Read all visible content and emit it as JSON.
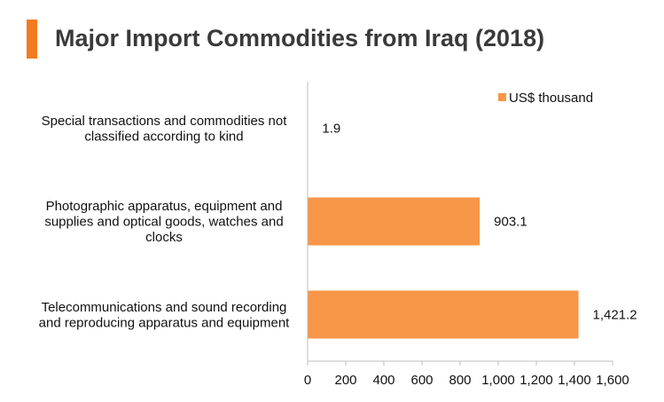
{
  "header": {
    "title": "Major Import Commodities from Iraq (2018)",
    "accent_color": "#f47b20"
  },
  "chart_data": {
    "type": "bar",
    "orientation": "horizontal",
    "title": "Major Import Commodities from Iraq (2018)",
    "categories": [
      [
        "Special transactions and commodities not",
        "classified according to kind"
      ],
      [
        "Photographic apparatus, equipment and",
        "supplies and optical goods, watches and",
        "clocks"
      ],
      [
        "Telecommunications and sound recording",
        "and reproducing apparatus and equipment"
      ]
    ],
    "series": [
      {
        "name": "US$ thousand",
        "values": [
          1.9,
          903.1,
          1421.2
        ],
        "labels": [
          "1.9",
          "903.1",
          "1,421.2"
        ],
        "color": "#f79646"
      }
    ],
    "xlim": [
      0,
      1600
    ],
    "ticks": [
      0,
      200,
      400,
      600,
      800,
      1000,
      1200,
      1400,
      1600
    ],
    "tick_labels": [
      "0",
      "200",
      "400",
      "600",
      "800",
      "1,000",
      "1,200",
      "1,400",
      "1,600"
    ],
    "grid": false,
    "legend_position": "top-right",
    "axis_color": "#bfbfbf"
  }
}
